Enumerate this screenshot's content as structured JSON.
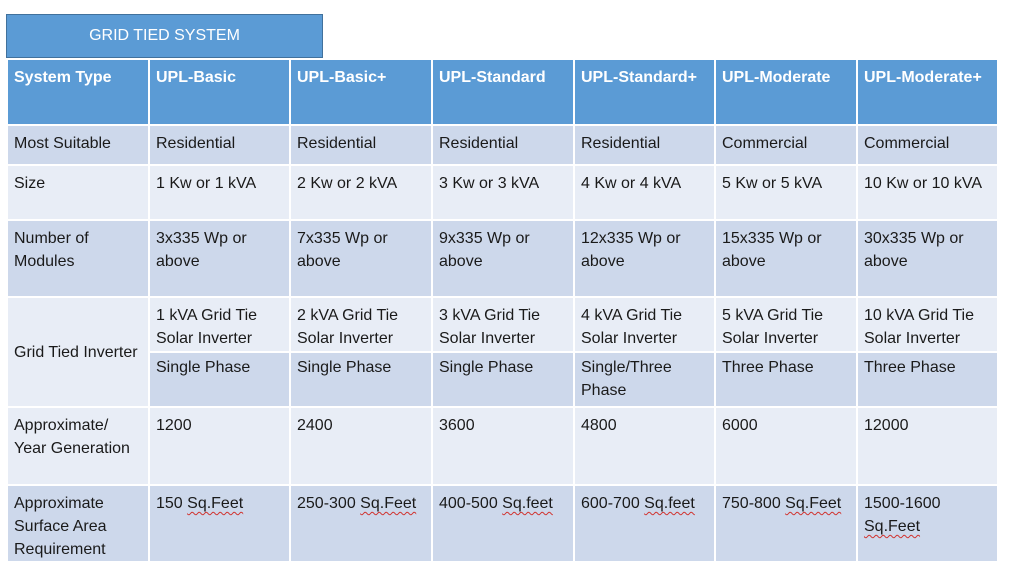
{
  "title": "GRID TIED SYSTEM",
  "headers": [
    "System Type",
    "UPL-Basic",
    "UPL-Basic+",
    "UPL-Standard",
    "UPL-Standard+",
    "UPL-Moderate",
    "UPL-Moderate+"
  ],
  "rows": {
    "most_suitable": {
      "label": "Most Suitable",
      "values": [
        "Residential",
        "Residential",
        "Residential",
        "Residential",
        "Commercial",
        "Commercial"
      ]
    },
    "size": {
      "label": "Size",
      "values": [
        "1 Kw or 1 kVA",
        "2 Kw or 2 kVA",
        "3 Kw or 3 kVA",
        "4 Kw or 4 kVA",
        "5 Kw or 5 kVA",
        "10 Kw or 10 kVA"
      ]
    },
    "modules": {
      "label": "Number of Modules",
      "values": [
        "3x335 Wp or above",
        "7x335 Wp or above",
        "9x335 Wp or above",
        "12x335 Wp or above",
        "15x335 Wp or above",
        "30x335 Wp or above"
      ]
    },
    "inverter": {
      "label": "Grid Tied Inverter",
      "values": [
        "1 kVA Grid Tie Solar Inverter",
        "2 kVA Grid Tie Solar Inverter",
        "3 kVA Grid Tie Solar Inverter",
        "4 kVA Grid Tie Solar Inverter",
        "5 kVA Grid Tie Solar Inverter",
        "10 kVA Grid Tie Solar Inverter"
      ],
      "phases": [
        "Single Phase",
        "Single Phase",
        "Single Phase",
        "Single/Three Phase",
        "Three Phase",
        "Three Phase"
      ]
    },
    "generation": {
      "label": "Approximate/ Year Generation",
      "values": [
        "1200",
        "2400",
        "3600",
        "4800",
        "6000",
        "12000"
      ]
    },
    "surface": {
      "label": "Approximate Surface Area Requirement",
      "values": [
        {
          "pre": "150 ",
          "unit": "Sq.Feet"
        },
        {
          "pre": "250-300 ",
          "unit": "Sq.Feet"
        },
        {
          "pre": "400-500 ",
          "unit": "Sq.feet"
        },
        {
          "pre": "600-700 ",
          "unit": "Sq.feet"
        },
        {
          "pre": "750-800 ",
          "unit": "Sq.Feet"
        },
        {
          "pre": "1500-1600 ",
          "unit": "Sq.Feet"
        }
      ]
    }
  }
}
